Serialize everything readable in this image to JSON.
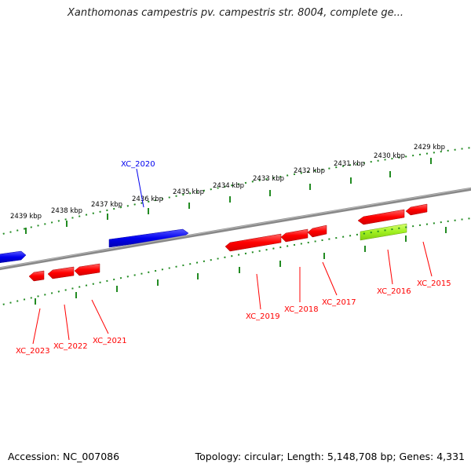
{
  "title": "Xanthomonas campestris pv. campestris str. 8004, complete ge...",
  "footer": {
    "accession": "Accession: NC_007086",
    "summary": "Topology: circular; Length: 5,148,708 bp; Genes: 4,331"
  },
  "colors": {
    "forward_gene": "#0000ee",
    "reverse_gene": "#ff0000",
    "highlight_gene": "#a0f020",
    "backbone": "#888888",
    "ruler": "#228b22"
  },
  "kbp_labels": [
    "2429 kbp",
    "2430 kbp",
    "2431 kbp",
    "2432 kbp",
    "2433 kbp",
    "2434 kbp",
    "2435 kbp",
    "2436 kbp",
    "2437 kbp",
    "2438 kbp",
    "2439 kbp"
  ],
  "gene_labels": [
    {
      "id": "XC_2015",
      "strand": "reverse"
    },
    {
      "id": "XC_2016",
      "strand": "reverse"
    },
    {
      "id": "XC_2017",
      "strand": "reverse"
    },
    {
      "id": "XC_2018",
      "strand": "reverse"
    },
    {
      "id": "XC_2019",
      "strand": "reverse"
    },
    {
      "id": "XC_2020",
      "strand": "forward"
    },
    {
      "id": "XC_2021",
      "strand": "reverse"
    },
    {
      "id": "XC_2022",
      "strand": "reverse"
    },
    {
      "id": "XC_2023",
      "strand": "reverse"
    }
  ]
}
